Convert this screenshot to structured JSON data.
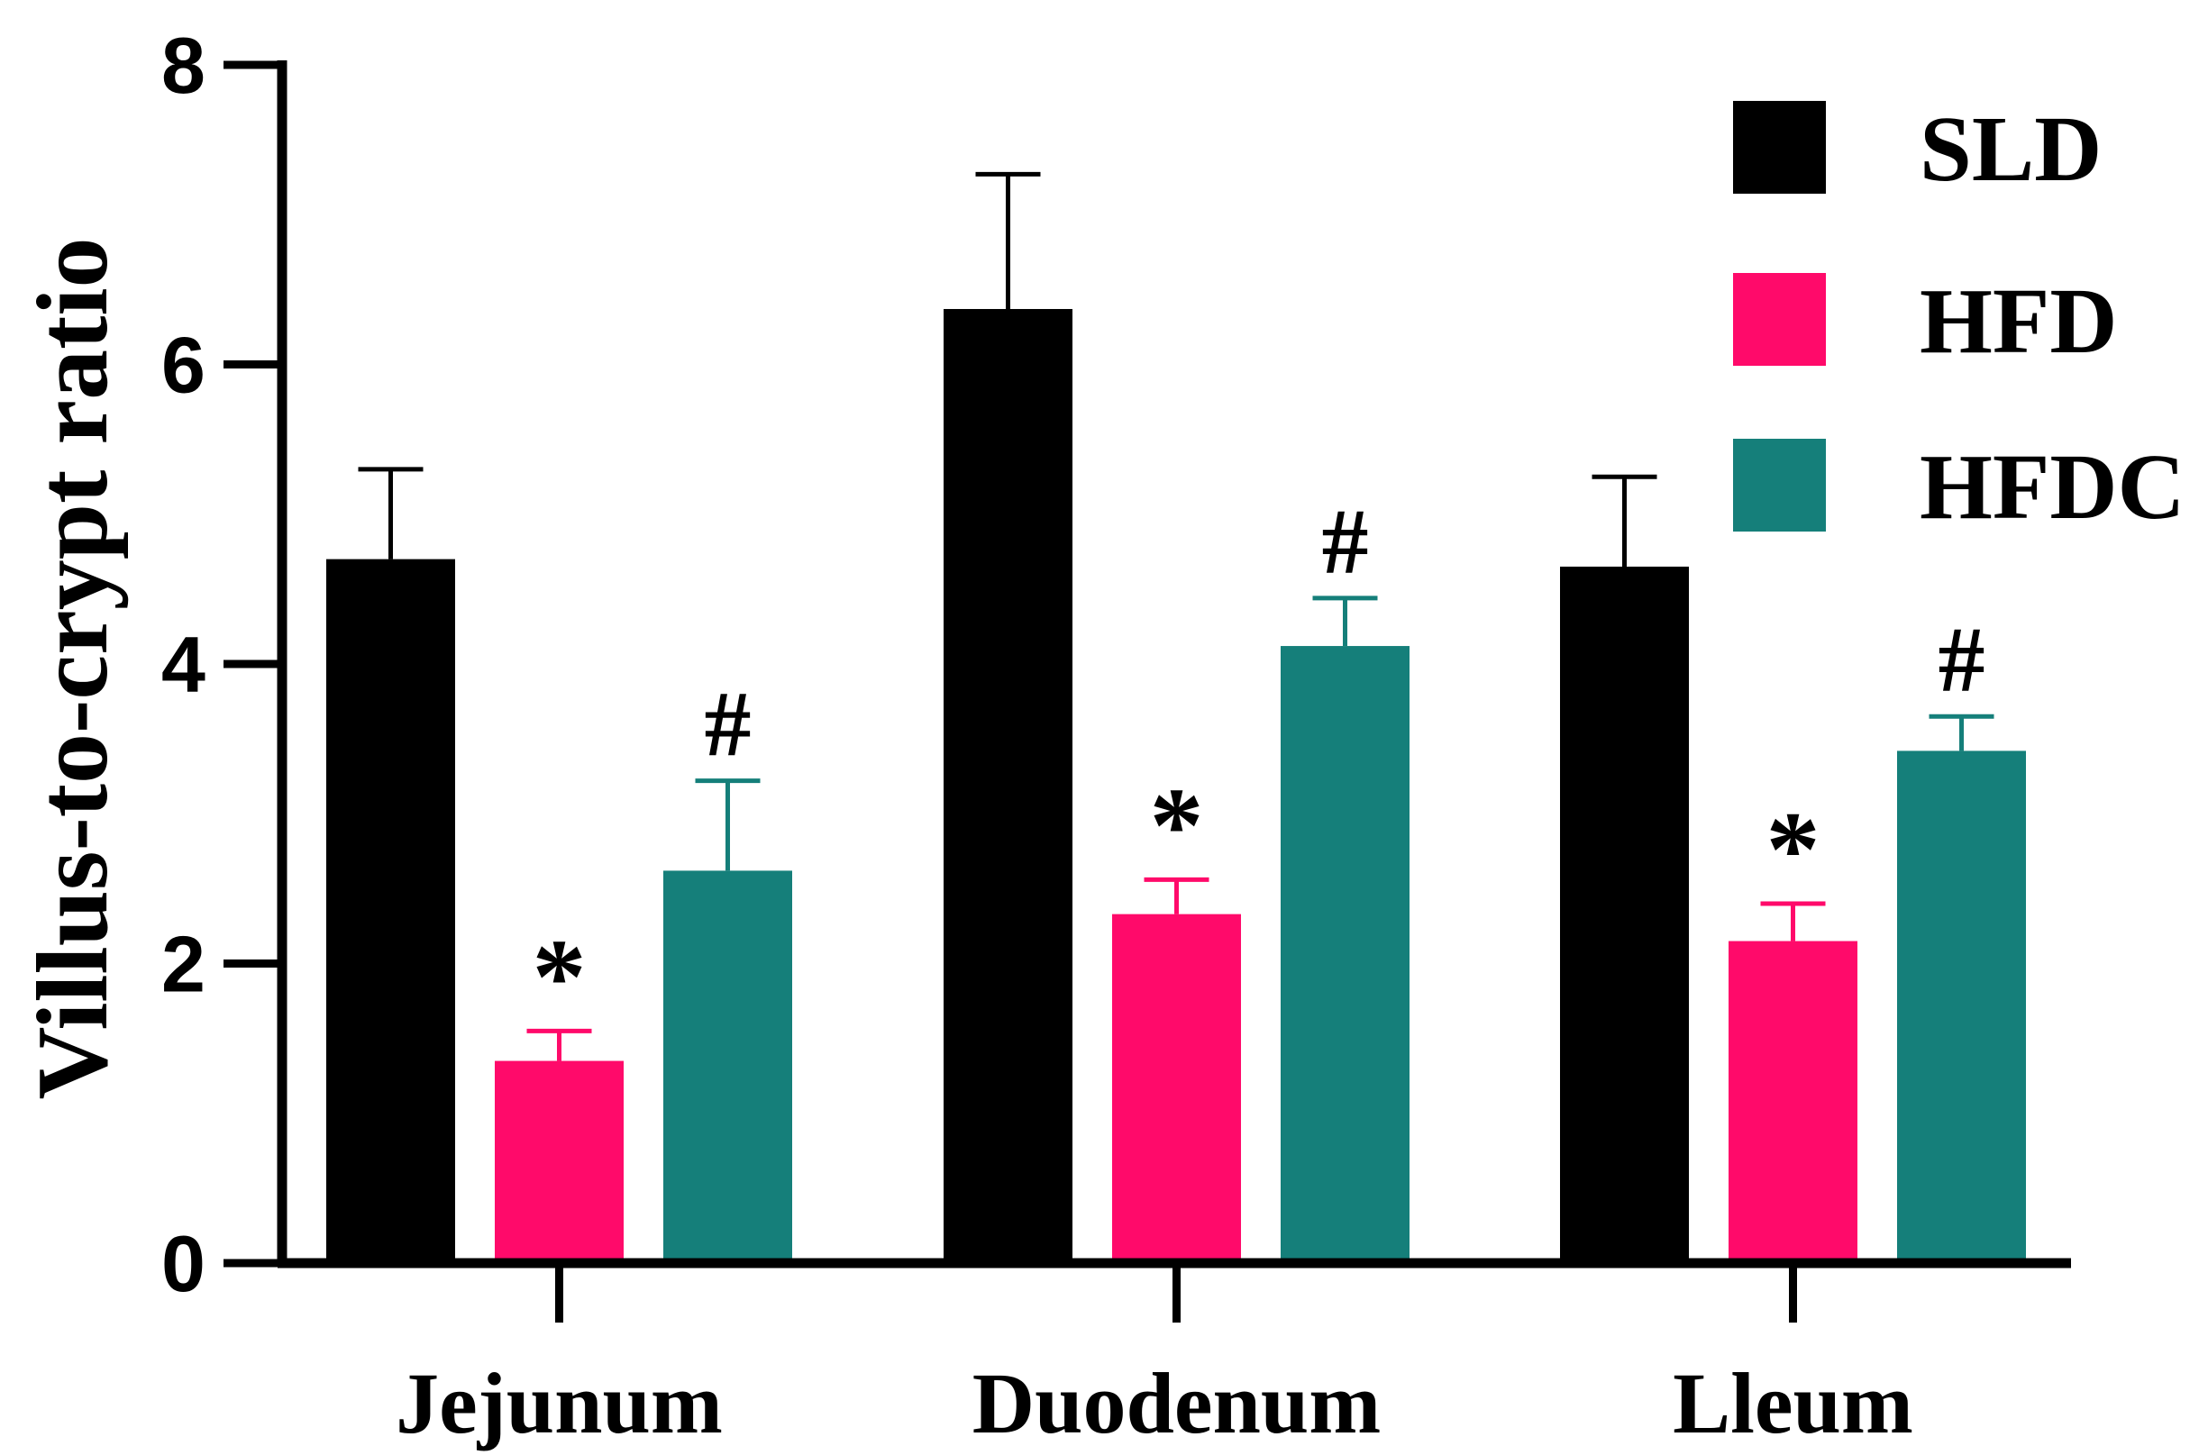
{
  "chart_data": {
    "type": "bar",
    "title": "",
    "xlabel": "",
    "ylabel": "Villus-to-crypt ratio",
    "ylim": [
      0,
      8
    ],
    "yticks": [
      "0",
      "2",
      "4",
      "6",
      "8"
    ],
    "categories": [
      "Jejunum",
      "Duodenum",
      "Lleum"
    ],
    "series": [
      {
        "name": "SLD",
        "color": "#000000",
        "values": [
          4.7,
          6.37,
          4.65
        ],
        "errors": [
          0.6,
          0.9,
          0.6
        ],
        "annotations": [
          "",
          "",
          ""
        ]
      },
      {
        "name": "HFD",
        "color": "#ff0a6a",
        "values": [
          1.35,
          2.33,
          2.15
        ],
        "errors": [
          0.2,
          0.23,
          0.25
        ],
        "annotations": [
          "*",
          "*",
          "*"
        ]
      },
      {
        "name": "HFDC",
        "color": "#157f7a",
        "values": [
          2.62,
          4.12,
          3.42
        ],
        "errors": [
          0.6,
          0.32,
          0.23
        ],
        "annotations": [
          "#",
          "#",
          "#"
        ]
      }
    ],
    "legend": {
      "position": "top-right"
    },
    "grid": false
  }
}
